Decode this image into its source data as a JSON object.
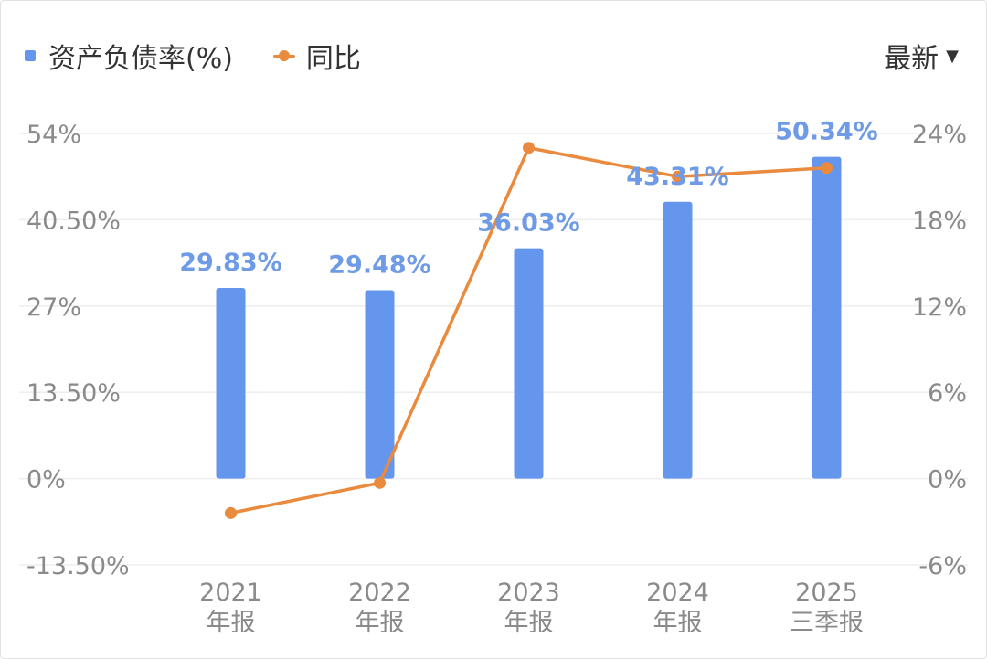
{
  "legend": {
    "bar_label": "资产负债率(%)",
    "line_label": "同比"
  },
  "period_selector": {
    "label": "最新",
    "icon": "caret-down-icon"
  },
  "colors": {
    "bar": "#6596ee",
    "line": "#e98a3d",
    "grid": "#eeeeee",
    "tick_text": "#8a8a8a",
    "bar_label_text": "#6f9be6"
  },
  "chart_data": {
    "type": "bar",
    "categories": [
      [
        "2021",
        "年报"
      ],
      [
        "2022",
        "年报"
      ],
      [
        "2023",
        "年报"
      ],
      [
        "2024",
        "年报"
      ],
      [
        "2025",
        "三季报"
      ]
    ],
    "series": [
      {
        "name": "资产负债率(%)",
        "type": "bar",
        "axis": "left",
        "values": [
          29.83,
          29.48,
          36.03,
          43.31,
          50.34
        ],
        "labels": [
          "29.83%",
          "29.48%",
          "36.03%",
          "43.31%",
          "50.34%"
        ]
      },
      {
        "name": "同比",
        "type": "line",
        "axis": "right",
        "values": [
          -2.4,
          -0.3,
          23.0,
          21.0,
          21.6
        ]
      }
    ],
    "y_left": {
      "ticks": [
        54,
        40.5,
        27,
        13.5,
        0,
        -13.5
      ],
      "tick_labels": [
        "54%",
        "40.50%",
        "27%",
        "13.50%",
        "0%",
        "-13.50%"
      ],
      "range": [
        -13.5,
        54
      ]
    },
    "y_right": {
      "ticks": [
        24,
        18,
        12,
        6,
        0,
        -6
      ],
      "tick_labels": [
        "24%",
        "18%",
        "12%",
        "6%",
        "0%",
        "-6%"
      ],
      "range": [
        -6,
        24
      ]
    },
    "grid": true,
    "legend_position": "top-left"
  }
}
